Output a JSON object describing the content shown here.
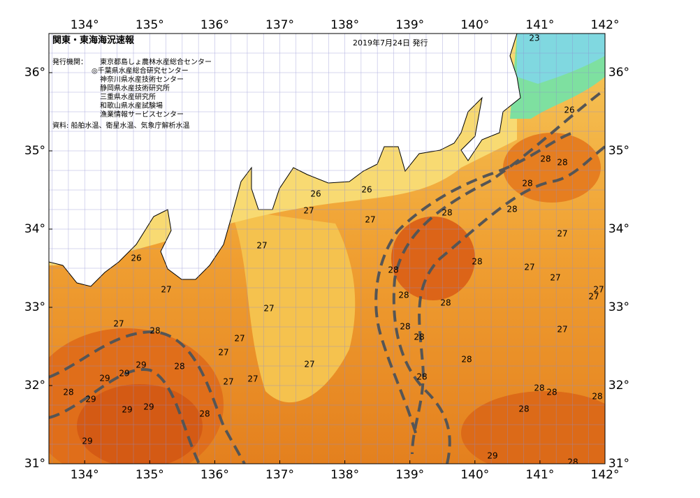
{
  "header": {
    "title": "関東・東海海況速報",
    "date": "2019年7月24日 発行",
    "issuer_label": "発行機関：",
    "issuers": [
      "東京都島しょ農林水産総合センター",
      "◎千葉県水産総合研究センター",
      "神奈川県水産技術センター",
      "静岡県水産技術研究所",
      "三重県水産研究所",
      "和歌山県水産試験場",
      "漁業情報サービスセンター"
    ],
    "source": "資料: 船舶水温、衛星水温、気象庁解析水温"
  },
  "map": {
    "lon_range": [
      133.45,
      142
    ],
    "lat_range": [
      31,
      36.5
    ],
    "lon_ticks": [
      {
        "value": 134,
        "label": "134°"
      },
      {
        "value": 135,
        "label": "135°"
      },
      {
        "value": 136,
        "label": "136°"
      },
      {
        "value": 137,
        "label": "137°"
      },
      {
        "value": 138,
        "label": "138°"
      },
      {
        "value": 139,
        "label": "139°"
      },
      {
        "value": 140,
        "label": "140°"
      },
      {
        "value": 141,
        "label": "141°"
      },
      {
        "value": 142,
        "label": "142°"
      }
    ],
    "lat_ticks": [
      {
        "value": 31,
        "label": "31°"
      },
      {
        "value": 32,
        "label": "32°"
      },
      {
        "value": 33,
        "label": "33°"
      },
      {
        "value": 34,
        "label": "34°"
      },
      {
        "value": 35,
        "label": "35°"
      },
      {
        "value": 36,
        "label": "36°"
      }
    ],
    "contour_labels": [
      23,
      26,
      28,
      28,
      28,
      28,
      26,
      26,
      27,
      27,
      28,
      27,
      27,
      26,
      28,
      27,
      28,
      27,
      27,
      27,
      27,
      28,
      28,
      27,
      27,
      28,
      28,
      28,
      27,
      27,
      27,
      28,
      27,
      29,
      28,
      29,
      29,
      27,
      27,
      28,
      28,
      28,
      28,
      28,
      29,
      29,
      29,
      28,
      28,
      29,
      29,
      28
    ]
  }
}
